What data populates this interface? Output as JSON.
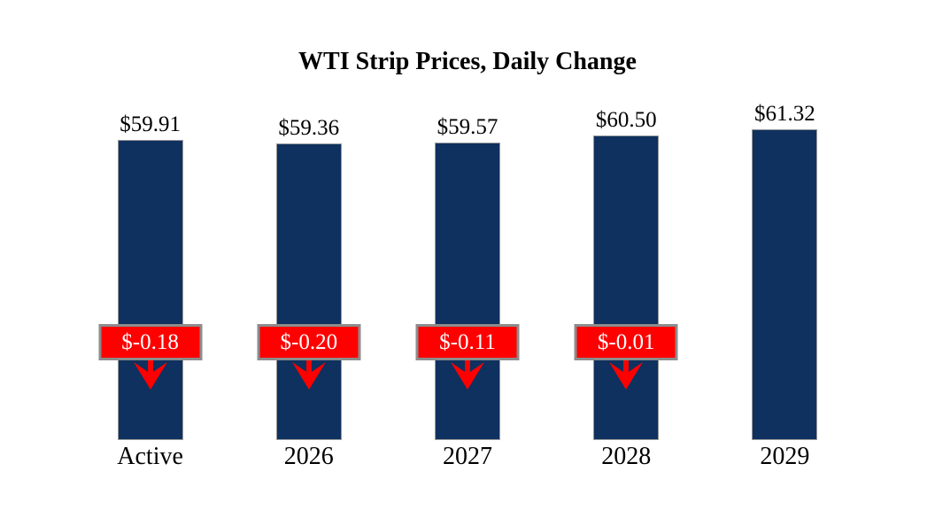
{
  "chart_data": {
    "type": "bar",
    "title": "WTI Strip Prices, Daily Change",
    "categories": [
      "Active",
      "2026",
      "2027",
      "2028",
      "2029"
    ],
    "values": [
      59.91,
      59.36,
      59.57,
      60.5,
      61.32
    ],
    "value_labels": [
      "$59.91",
      "$59.36",
      "$59.57",
      "$60.50",
      "$61.32"
    ],
    "daily_changes": [
      -0.18,
      -0.2,
      -0.11,
      -0.01,
      null
    ],
    "change_labels": [
      "$-0.18",
      "$-0.20",
      "$-0.11",
      "$-0.01",
      null
    ],
    "xlabel": "",
    "ylabel": "",
    "ylim": [
      20,
      65
    ],
    "grid": false,
    "legend": false
  },
  "colors": {
    "bar_fill": "#0e315f",
    "bar_border": "#9a9a9a",
    "badge_fill": "#ff0000",
    "badge_border": "#8c8c8c",
    "badge_text": "#ffffff",
    "arrow": "#ff0000",
    "text": "#000000",
    "background": "#ffffff"
  }
}
